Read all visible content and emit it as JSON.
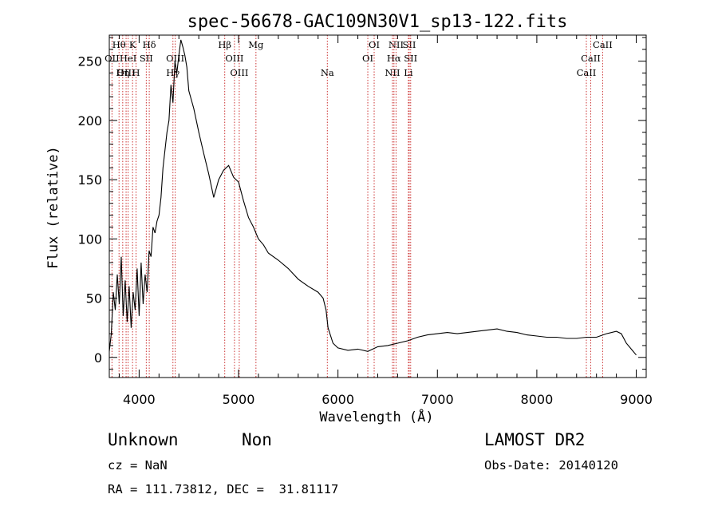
{
  "footer": {
    "object_class": "Unknown",
    "subclass": "Non",
    "survey": "LAMOST DR2",
    "cz": "cz = NaN",
    "obs_date": "Obs-Date: 20140120",
    "coords": "RA = 111.73812, DEC =  31.81117"
  },
  "chart_data": {
    "type": "line",
    "title": "spec-56678-GAC109N30V1_sp13-122.fits",
    "xlabel": "Wavelength (Å)",
    "ylabel": "Flux (relative)",
    "xlim": [
      3700,
      9100
    ],
    "ylim": [
      -17,
      272
    ],
    "x_ticks": [
      4000,
      5000,
      6000,
      7000,
      8000,
      9000
    ],
    "y_ticks": [
      0,
      50,
      100,
      150,
      200,
      250
    ],
    "grid": false,
    "line_color": "#000000",
    "marker_color": "#cc3333",
    "series": [
      {
        "points": [
          [
            3700,
            5
          ],
          [
            3720,
            20
          ],
          [
            3740,
            55
          ],
          [
            3760,
            40
          ],
          [
            3780,
            70
          ],
          [
            3800,
            45
          ],
          [
            3820,
            85
          ],
          [
            3840,
            35
          ],
          [
            3860,
            65
          ],
          [
            3880,
            30
          ],
          [
            3900,
            60
          ],
          [
            3920,
            25
          ],
          [
            3940,
            55
          ],
          [
            3960,
            40
          ],
          [
            3980,
            75
          ],
          [
            4000,
            35
          ],
          [
            4020,
            80
          ],
          [
            4040,
            45
          ],
          [
            4060,
            70
          ],
          [
            4080,
            55
          ],
          [
            4100,
            90
          ],
          [
            4120,
            85
          ],
          [
            4140,
            110
          ],
          [
            4160,
            105
          ],
          [
            4180,
            115
          ],
          [
            4200,
            120
          ],
          [
            4220,
            135
          ],
          [
            4240,
            160
          ],
          [
            4260,
            175
          ],
          [
            4280,
            190
          ],
          [
            4300,
            200
          ],
          [
            4320,
            230
          ],
          [
            4340,
            215
          ],
          [
            4360,
            250
          ],
          [
            4380,
            240
          ],
          [
            4400,
            255
          ],
          [
            4420,
            268
          ],
          [
            4440,
            262
          ],
          [
            4460,
            255
          ],
          [
            4480,
            245
          ],
          [
            4500,
            225
          ],
          [
            4550,
            210
          ],
          [
            4600,
            190
          ],
          [
            4650,
            172
          ],
          [
            4700,
            155
          ],
          [
            4750,
            135
          ],
          [
            4800,
            150
          ],
          [
            4850,
            158
          ],
          [
            4900,
            162
          ],
          [
            4950,
            152
          ],
          [
            5000,
            148
          ],
          [
            5050,
            132
          ],
          [
            5100,
            118
          ],
          [
            5150,
            110
          ],
          [
            5200,
            100
          ],
          [
            5250,
            95
          ],
          [
            5300,
            88
          ],
          [
            5400,
            82
          ],
          [
            5500,
            75
          ],
          [
            5600,
            66
          ],
          [
            5700,
            60
          ],
          [
            5800,
            55
          ],
          [
            5850,
            50
          ],
          [
            5880,
            40
          ],
          [
            5900,
            25
          ],
          [
            5950,
            12
          ],
          [
            6000,
            8
          ],
          [
            6100,
            6
          ],
          [
            6200,
            7
          ],
          [
            6300,
            5
          ],
          [
            6400,
            9
          ],
          [
            6500,
            10
          ],
          [
            6600,
            12
          ],
          [
            6700,
            14
          ],
          [
            6800,
            17
          ],
          [
            6900,
            19
          ],
          [
            7000,
            20
          ],
          [
            7100,
            21
          ],
          [
            7200,
            20
          ],
          [
            7300,
            21
          ],
          [
            7400,
            22
          ],
          [
            7500,
            23
          ],
          [
            7600,
            24
          ],
          [
            7700,
            22
          ],
          [
            7800,
            21
          ],
          [
            7900,
            19
          ],
          [
            8000,
            18
          ],
          [
            8100,
            17
          ],
          [
            8200,
            17
          ],
          [
            8300,
            16
          ],
          [
            8400,
            16
          ],
          [
            8500,
            17
          ],
          [
            8600,
            17
          ],
          [
            8700,
            20
          ],
          [
            8800,
            22
          ],
          [
            8850,
            20
          ],
          [
            8900,
            12
          ],
          [
            8950,
            7
          ],
          [
            9000,
            2
          ]
        ]
      }
    ],
    "lines": [
      {
        "label": "Hθ",
        "wave": 3798,
        "row": 0
      },
      {
        "label": "OII",
        "wave": 3727,
        "row": 1
      },
      {
        "label": "OIII",
        "wave": 3869,
        "row": 2
      },
      {
        "label": "K",
        "wave": 3934,
        "row": 0
      },
      {
        "label": "HeI",
        "wave": 3889,
        "row": 1
      },
      {
        "label": "Hη",
        "wave": 3835,
        "row": 2
      },
      {
        "label": "SII",
        "wave": 4072,
        "row": 1
      },
      {
        "label": "H",
        "wave": 3969,
        "row": 2
      },
      {
        "label": "Hδ",
        "wave": 4102,
        "row": 0
      },
      {
        "label": "OIII",
        "wave": 4363,
        "row": 1
      },
      {
        "label": "Hγ",
        "wave": 4340,
        "row": 2
      },
      {
        "label": "Hβ",
        "wave": 4861,
        "row": 0
      },
      {
        "label": "Mg",
        "wave": 5175,
        "row": 0
      },
      {
        "label": "OIII",
        "wave": 4959,
        "row": 1
      },
      {
        "label": "OIII",
        "wave": 5007,
        "row": 2
      },
      {
        "label": "Na",
        "wave": 5893,
        "row": 2
      },
      {
        "label": "OI",
        "wave": 6364,
        "row": 0
      },
      {
        "label": "OI",
        "wave": 6300,
        "row": 1
      },
      {
        "label": "NII",
        "wave": 6584,
        "row": 0
      },
      {
        "label": "SII",
        "wave": 6717,
        "row": 0
      },
      {
        "label": "Hα",
        "wave": 6563,
        "row": 1
      },
      {
        "label": "SII",
        "wave": 6731,
        "row": 1
      },
      {
        "label": "NII",
        "wave": 6548,
        "row": 2
      },
      {
        "label": "Li",
        "wave": 6708,
        "row": 2
      },
      {
        "label": "CaII",
        "wave": 8662,
        "row": 0
      },
      {
        "label": "CaII",
        "wave": 8542,
        "row": 1
      },
      {
        "label": "CaII",
        "wave": 8498,
        "row": 2
      }
    ]
  }
}
